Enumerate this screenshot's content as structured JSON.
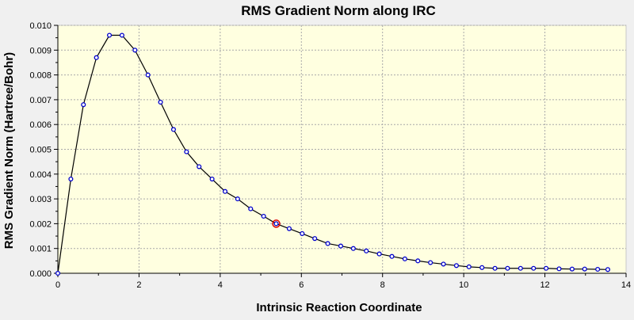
{
  "chart_data": {
    "type": "line",
    "title": "RMS Gradient Norm along IRC",
    "xlabel": "Intrinsic Reaction Coordinate",
    "ylabel": "RMS Gradient Norm (Hartree/Bohr)",
    "xlim": [
      0,
      14
    ],
    "ylim": [
      0,
      0.01
    ],
    "xticks": [
      "0",
      "2",
      "4",
      "6",
      "8",
      "10",
      "12",
      "14"
    ],
    "yticks": [
      "0.000",
      "0.001",
      "0.002",
      "0.003",
      "0.004",
      "0.005",
      "0.006",
      "0.007",
      "0.008",
      "0.009",
      "0.010"
    ],
    "grid": true,
    "series": [
      {
        "color": "#000000",
        "marker_color": "#0000cc",
        "x": [
          0.0,
          0.32,
          0.63,
          0.95,
          1.27,
          1.58,
          1.9,
          2.22,
          2.53,
          2.85,
          3.17,
          3.48,
          3.8,
          4.12,
          4.43,
          4.75,
          5.07,
          5.38,
          5.7,
          6.02,
          6.33,
          6.65,
          6.97,
          7.28,
          7.6,
          7.92,
          8.23,
          8.55,
          8.87,
          9.18,
          9.5,
          9.82,
          10.13,
          10.45,
          10.77,
          11.08,
          11.4,
          11.72,
          12.03,
          12.35,
          12.67,
          12.98,
          13.3,
          13.55
        ],
        "y": [
          0.0,
          0.0038,
          0.0068,
          0.0087,
          0.0096,
          0.0096,
          0.009,
          0.008,
          0.0069,
          0.0058,
          0.0049,
          0.0043,
          0.0038,
          0.0033,
          0.003,
          0.0026,
          0.0023,
          0.002,
          0.0018,
          0.0016,
          0.0014,
          0.0012,
          0.0011,
          0.001,
          0.0009,
          0.00078,
          0.00068,
          0.00058,
          0.0005,
          0.00043,
          0.00037,
          0.00031,
          0.00026,
          0.00023,
          0.0002,
          0.0002,
          0.0002,
          0.0002,
          0.0002,
          0.00018,
          0.00017,
          0.00017,
          0.00016,
          0.00015
        ]
      }
    ],
    "highlight_point": {
      "x": 5.38,
      "y": 0.002,
      "color": "#dd0000"
    }
  }
}
